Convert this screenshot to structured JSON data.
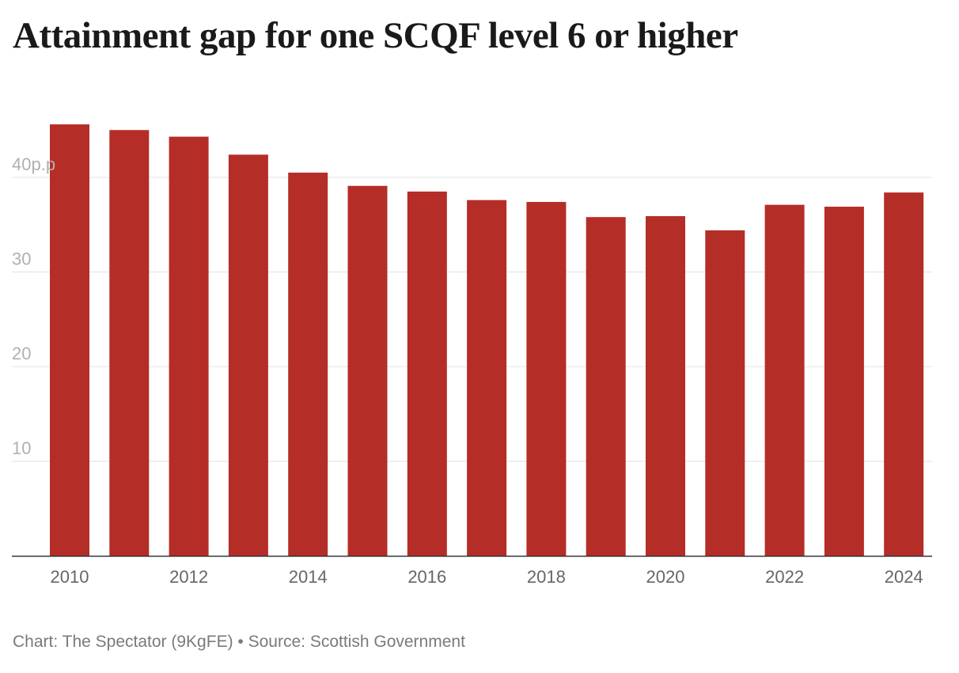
{
  "title": "Attainment gap for one SCQF level 6 or higher",
  "footer": {
    "chart_credit": "Chart: The Spectator (9KgFE)",
    "separator": "•",
    "source": "Source: Scottish Government"
  },
  "colors": {
    "bar": "#b52d27",
    "grid": "#e3e3e3",
    "axis": "#333333",
    "tick_text_y": "#b0b0b0",
    "tick_text_x": "#666666"
  },
  "chart_data": {
    "type": "bar",
    "categories": [
      "2010",
      "2011",
      "2012",
      "2013",
      "2014",
      "2015",
      "2016",
      "2017",
      "2018",
      "2019",
      "2020",
      "2021",
      "2022",
      "2023",
      "2024"
    ],
    "values": [
      45.6,
      45.0,
      44.3,
      42.4,
      40.5,
      39.1,
      38.5,
      37.6,
      37.4,
      35.8,
      35.9,
      34.4,
      37.1,
      36.9,
      38.4
    ],
    "x_tick_labels": [
      "2010",
      "2012",
      "2014",
      "2016",
      "2018",
      "2020",
      "2022",
      "2024"
    ],
    "y_ticks": [
      10,
      20,
      30,
      40
    ],
    "y_tick_labels": [
      "10",
      "20",
      "30",
      "40p.p"
    ],
    "ylim": [
      0,
      48
    ],
    "grid": true,
    "legend": "none",
    "xlabel": "",
    "ylabel": ""
  }
}
